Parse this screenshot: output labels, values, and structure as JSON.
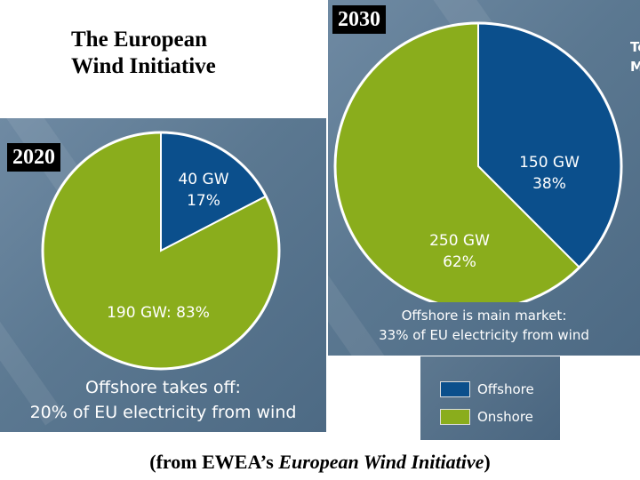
{
  "title_line1": "The European",
  "title_line2": "Wind Initiative",
  "source_prefix": "(from EWEA’s ",
  "source_italic": "European Wind Initiative",
  "source_suffix": ")",
  "corner_text": [
    "Te",
    "M"
  ],
  "colors": {
    "offshore": "#0b4f8c",
    "onshore": "#8aad1c"
  },
  "legend": [
    {
      "label": "Offshore",
      "color": "#0b4f8c"
    },
    {
      "label": "Onshore",
      "color": "#8aad1c"
    }
  ],
  "chart_data": [
    {
      "type": "pie",
      "year": "2020",
      "caption_line1": "Offshore takes off:",
      "caption_line2": "20% of EU electricity from wind",
      "slices": [
        {
          "name": "Offshore",
          "value_gw": 40,
          "percent": 17,
          "label_line1": "40 GW",
          "label_line2": "17%"
        },
        {
          "name": "Onshore",
          "value_gw": 190,
          "percent": 83,
          "label_line1": "190 GW: 83%",
          "label_line2": ""
        }
      ]
    },
    {
      "type": "pie",
      "year": "2030",
      "caption_line1": "Offshore is main market:",
      "caption_line2": "33% of EU electricity from wind",
      "slices": [
        {
          "name": "Offshore",
          "value_gw": 150,
          "percent": 38,
          "label_line1": "150 GW",
          "label_line2": "38%"
        },
        {
          "name": "Onshore",
          "value_gw": 250,
          "percent": 62,
          "label_line1": "250 GW",
          "label_line2": "62%"
        }
      ]
    }
  ]
}
